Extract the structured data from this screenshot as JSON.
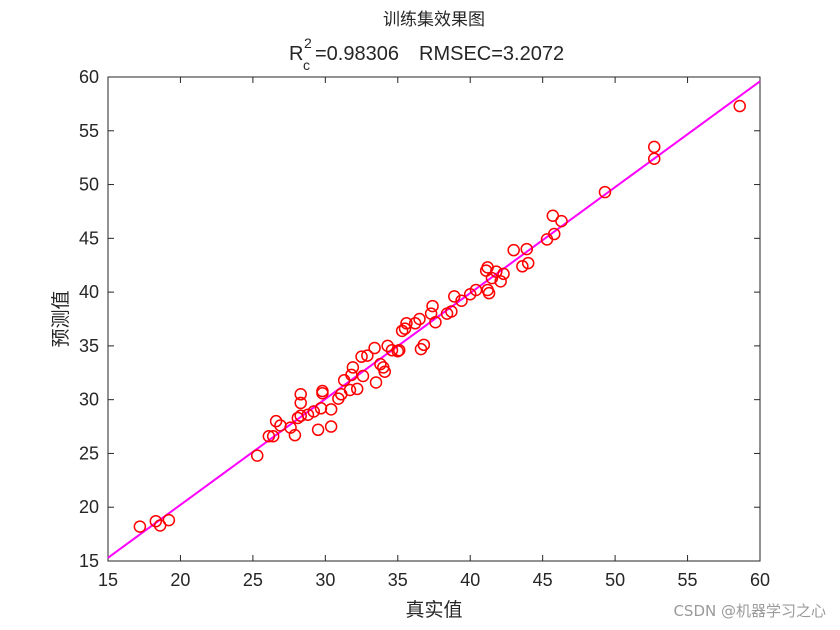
{
  "chart_data": {
    "type": "scatter",
    "title": "训练集效果图",
    "subtitle": {
      "r_label": "R",
      "r_sup": "2",
      "r_sub": "c",
      "r_value": "=0.98306",
      "rmse": "RMSEC=3.2072"
    },
    "xlabel": "真实值",
    "ylabel": "预测值",
    "xlim": [
      15,
      60
    ],
    "ylim": [
      15,
      60
    ],
    "xticks": [
      15,
      20,
      25,
      30,
      35,
      40,
      45,
      50,
      55,
      60
    ],
    "yticks": [
      15,
      20,
      25,
      30,
      35,
      40,
      45,
      50,
      55,
      60
    ],
    "marker_color": "#ff0000",
    "line_color": "#ff00ff",
    "fit_line": {
      "x": [
        15,
        60
      ],
      "y": [
        15.3,
        59.6
      ]
    },
    "points": [
      [
        17.2,
        18.2
      ],
      [
        18.3,
        18.7
      ],
      [
        18.6,
        18.3
      ],
      [
        19.2,
        18.8
      ],
      [
        25.3,
        24.8
      ],
      [
        26.1,
        26.6
      ],
      [
        26.4,
        26.6
      ],
      [
        26.6,
        28.0
      ],
      [
        26.9,
        27.6
      ],
      [
        27.6,
        27.4
      ],
      [
        27.9,
        26.7
      ],
      [
        28.1,
        28.3
      ],
      [
        28.3,
        28.5
      ],
      [
        28.3,
        29.7
      ],
      [
        28.3,
        30.5
      ],
      [
        28.8,
        28.6
      ],
      [
        29.2,
        28.9
      ],
      [
        29.5,
        27.2
      ],
      [
        29.7,
        29.2
      ],
      [
        29.8,
        30.6
      ],
      [
        29.8,
        30.8
      ],
      [
        30.4,
        27.5
      ],
      [
        30.4,
        29.1
      ],
      [
        30.9,
        30.1
      ],
      [
        31.1,
        30.5
      ],
      [
        31.3,
        31.8
      ],
      [
        31.7,
        30.9
      ],
      [
        31.8,
        32.3
      ],
      [
        31.9,
        33.0
      ],
      [
        32.2,
        31.0
      ],
      [
        32.5,
        34.0
      ],
      [
        32.6,
        32.2
      ],
      [
        32.9,
        34.1
      ],
      [
        33.4,
        34.8
      ],
      [
        33.5,
        31.6
      ],
      [
        33.8,
        33.3
      ],
      [
        34.0,
        33.0
      ],
      [
        34.1,
        32.6
      ],
      [
        34.3,
        35.0
      ],
      [
        34.6,
        34.6
      ],
      [
        35.0,
        34.5
      ],
      [
        35.1,
        34.6
      ],
      [
        35.3,
        36.4
      ],
      [
        35.5,
        36.6
      ],
      [
        35.6,
        37.1
      ],
      [
        36.2,
        37.1
      ],
      [
        36.5,
        37.5
      ],
      [
        36.6,
        34.7
      ],
      [
        36.8,
        35.1
      ],
      [
        37.3,
        38.0
      ],
      [
        37.4,
        38.7
      ],
      [
        37.6,
        37.2
      ],
      [
        38.4,
        38.0
      ],
      [
        38.7,
        38.2
      ],
      [
        38.9,
        39.6
      ],
      [
        39.4,
        39.2
      ],
      [
        40.0,
        39.8
      ],
      [
        40.4,
        40.2
      ],
      [
        41.1,
        42.0
      ],
      [
        41.2,
        42.3
      ],
      [
        41.2,
        40.2
      ],
      [
        41.3,
        39.9
      ],
      [
        41.5,
        41.3
      ],
      [
        41.8,
        41.9
      ],
      [
        42.1,
        41.0
      ],
      [
        42.3,
        41.7
      ],
      [
        43.0,
        43.9
      ],
      [
        43.6,
        42.4
      ],
      [
        43.9,
        44.0
      ],
      [
        44.0,
        42.7
      ],
      [
        45.3,
        44.9
      ],
      [
        45.7,
        47.1
      ],
      [
        45.8,
        45.4
      ],
      [
        46.3,
        46.6
      ],
      [
        49.3,
        49.3
      ],
      [
        52.7,
        53.5
      ],
      [
        52.7,
        52.4
      ],
      [
        58.6,
        57.3
      ]
    ]
  },
  "watermark": "CSDN @机器学习之心"
}
